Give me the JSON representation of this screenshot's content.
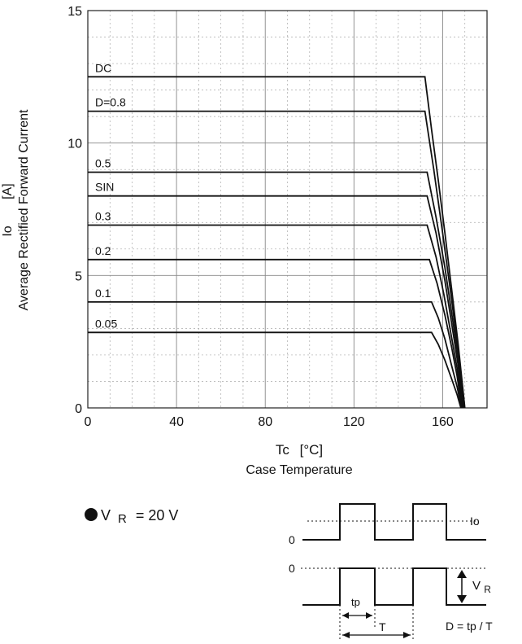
{
  "chart_data": {
    "type": "line",
    "xlabel": "Case Temperature",
    "xlabel_symbol": "Tc",
    "xlabel_unit": "[°C]",
    "ylabel": "Average Rectified Forward Current",
    "ylabel_symbol": "Io",
    "ylabel_unit": "[A]",
    "xlim": [
      0,
      180
    ],
    "ylim": [
      0,
      15
    ],
    "x_ticks": [
      0,
      40,
      80,
      120,
      160
    ],
    "y_ticks": [
      0,
      5,
      10,
      15
    ],
    "grid": true,
    "series": [
      {
        "name": "DC",
        "points": [
          [
            0,
            12.5
          ],
          [
            152,
            12.5
          ],
          [
            155,
            10.5
          ],
          [
            158,
            8.6
          ],
          [
            161,
            6.6
          ],
          [
            164,
            4.5
          ],
          [
            167,
            2.4
          ],
          [
            170,
            0
          ]
        ]
      },
      {
        "name": "D=0.8",
        "points": [
          [
            0,
            11.2
          ],
          [
            152,
            11.2
          ],
          [
            156,
            9.0
          ],
          [
            160,
            6.6
          ],
          [
            164,
            4.1
          ],
          [
            167,
            2.1
          ],
          [
            169.5,
            0
          ]
        ]
      },
      {
        "name": "0.5",
        "points": [
          [
            0,
            8.9
          ],
          [
            153,
            8.9
          ],
          [
            157,
            7.2
          ],
          [
            161,
            5.3
          ],
          [
            164,
            3.6
          ],
          [
            167,
            1.9
          ],
          [
            169.3,
            0
          ]
        ]
      },
      {
        "name": "SIN",
        "points": [
          [
            0,
            8.0
          ],
          [
            153,
            8.0
          ],
          [
            157,
            6.6
          ],
          [
            161,
            4.8
          ],
          [
            164,
            3.2
          ],
          [
            167,
            1.6
          ],
          [
            169,
            0
          ]
        ]
      },
      {
        "name": "0.3",
        "points": [
          [
            0,
            6.9
          ],
          [
            153,
            6.9
          ],
          [
            157,
            5.7
          ],
          [
            160.5,
            4.3
          ],
          [
            163.5,
            2.9
          ],
          [
            166.5,
            1.5
          ],
          [
            168.8,
            0
          ]
        ]
      },
      {
        "name": "0.2",
        "points": [
          [
            0,
            5.6
          ],
          [
            154,
            5.6
          ],
          [
            157.5,
            4.7
          ],
          [
            161,
            3.5
          ],
          [
            164,
            2.3
          ],
          [
            166.5,
            1.2
          ],
          [
            168.6,
            0
          ]
        ]
      },
      {
        "name": "0.1",
        "points": [
          [
            0,
            4.0
          ],
          [
            155,
            4.0
          ],
          [
            158,
            3.4
          ],
          [
            161,
            2.6
          ],
          [
            164,
            1.6
          ],
          [
            166.5,
            0.8
          ],
          [
            168.4,
            0
          ]
        ]
      },
      {
        "name": "0.05",
        "points": [
          [
            0,
            2.85
          ],
          [
            155,
            2.85
          ],
          [
            158,
            2.4
          ],
          [
            161,
            1.8
          ],
          [
            164,
            1.1
          ],
          [
            166.5,
            0.5
          ],
          [
            168.2,
            0
          ]
        ]
      }
    ]
  },
  "conditions": {
    "vr_prefix": "V",
    "vr_sub": "R",
    "vr_value": "= 20 V"
  },
  "waveform": {
    "io_label": "Io",
    "zero_label": "0",
    "vr_label_main": "V",
    "vr_label_sub": "R",
    "tp_label": "tp",
    "T_label": "T",
    "duty_label": "D =  tp / T"
  }
}
